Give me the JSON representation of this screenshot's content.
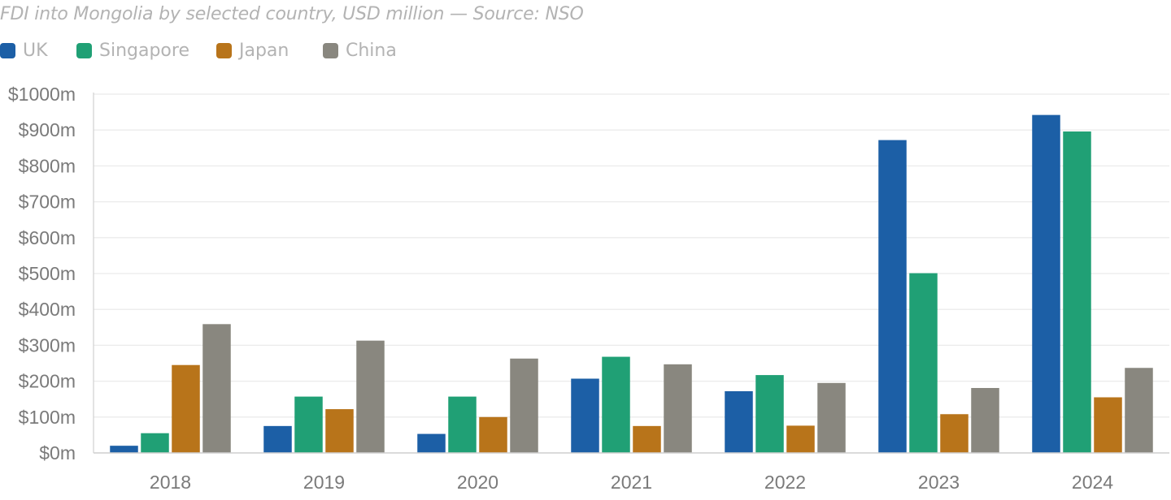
{
  "chart_data": {
    "type": "bar",
    "title": "FDI into Mongolia by selected country, USD million — Source: NSO",
    "xlabel": "",
    "ylabel": "",
    "categories": [
      "2018",
      "2019",
      "2020",
      "2021",
      "2022",
      "2023",
      "2024"
    ],
    "series": [
      {
        "name": "UK",
        "color": "#1c5fa6",
        "values": [
          20,
          75,
          53,
          207,
          172,
          872,
          942
        ]
      },
      {
        "name": "Singapore",
        "color": "#20a075",
        "values": [
          55,
          157,
          157,
          268,
          217,
          501,
          896
        ]
      },
      {
        "name": "Japan",
        "color": "#b8741a",
        "values": [
          245,
          122,
          100,
          75,
          76,
          108,
          155
        ]
      },
      {
        "name": "China",
        "color": "#89877f",
        "values": [
          359,
          313,
          263,
          247,
          195,
          181,
          237
        ]
      }
    ],
    "ylim": [
      0,
      1000
    ],
    "yticks": [
      0,
      100,
      200,
      300,
      400,
      500,
      600,
      700,
      800,
      900,
      1000
    ],
    "ytick_labels": [
      "$0m",
      "$100m",
      "$200m",
      "$300m",
      "$400m",
      "$500m",
      "$600m",
      "$700m",
      "$800m",
      "$900m",
      "$1000m"
    ],
    "grid": true,
    "legend_position": "top-left"
  }
}
